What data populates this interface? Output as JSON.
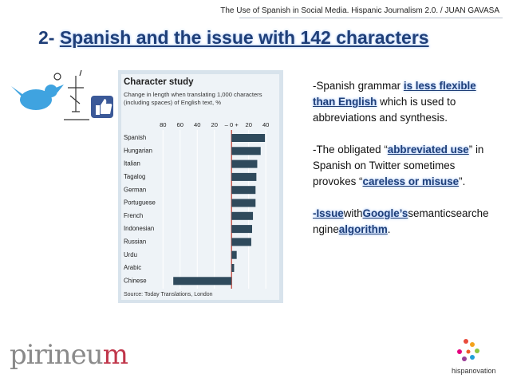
{
  "header": "The Use of Spanish in Social Media. Hispanic Journalism 2.0. / JUAN GAVASA",
  "title": {
    "number": "2-",
    "text": "Spanish and the issue with 142 characters"
  },
  "chart_data": {
    "type": "bar",
    "orientation": "horizontal",
    "title": "Character study",
    "subtitle": [
      "Change in length when translating 1,000 characters",
      "(including spaces) of English text, %"
    ],
    "source": "Source: Today Translations, London",
    "categories": [
      "Spanish",
      "Hungarian",
      "Italian",
      "Tagalog",
      "German",
      "Portuguese",
      "French",
      "Indonesian",
      "Russian",
      "Urdu",
      "Arabic",
      "Chinese"
    ],
    "values": [
      39,
      34,
      30,
      29,
      28,
      28,
      25,
      24,
      23,
      6,
      3,
      -68
    ],
    "color": "#2f4a5c",
    "xlim": [
      -84,
      51
    ],
    "xticks": [
      {
        "value": -80,
        "label": "80"
      },
      {
        "value": -60,
        "label": "60"
      },
      {
        "value": -40,
        "label": "40"
      },
      {
        "value": -20,
        "label": "20"
      },
      {
        "value": 0,
        "label": "– 0 +"
      },
      20,
      40
    ],
    "grid": true
  },
  "paragraphs": [
    [
      "-Spanish grammar ",
      "is less flexible than English",
      " which is used to abbreviations and synthesis."
    ],
    [
      "-The obligated “",
      "abbreviated use",
      "” in Spanish on Twitter sometimes provokes “",
      "careless or misuse",
      "”."
    ],
    [
      "-Issue",
      "with",
      "Google’s",
      "semanticsearchengine",
      "algorithm",
      "."
    ]
  ],
  "logos": {
    "left": [
      "pirineu",
      "m"
    ],
    "right": "hispanovation"
  }
}
